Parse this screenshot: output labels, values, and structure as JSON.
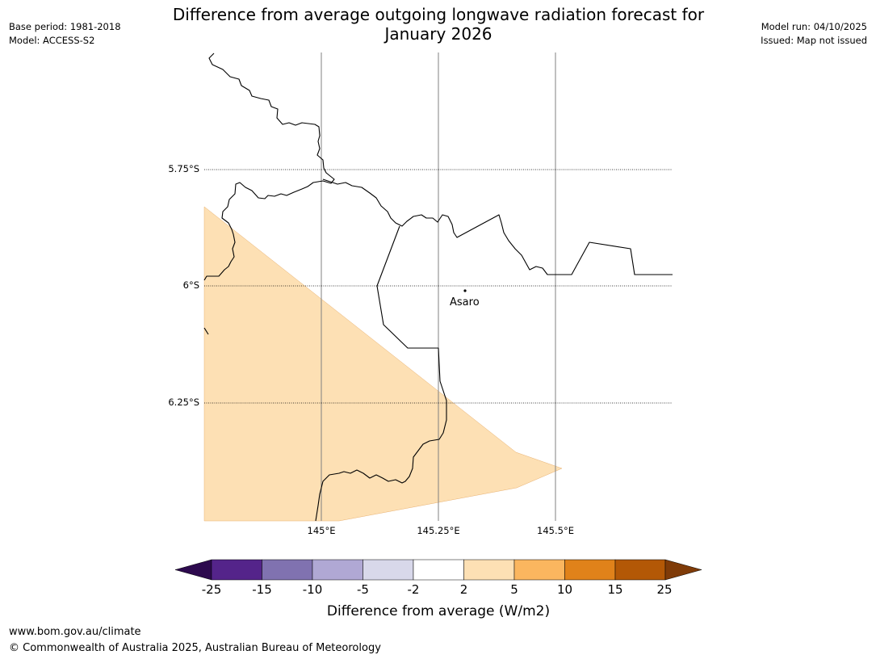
{
  "header": {
    "base_period": "Base period: 1981-2018",
    "model": "Model: ACCESS-S2",
    "model_run": "Model run: 04/10/2025",
    "issued": "Issued: Map not issued",
    "title_line1": "Difference from average outgoing longwave radiation forecast for",
    "title_line2": "January 2026"
  },
  "map": {
    "latitudes": [
      "5.75°S",
      "6°S",
      "6.25°S"
    ],
    "longitudes": [
      "145°E",
      "145.25°E",
      "145.5°E"
    ],
    "place_label": "Asaro"
  },
  "colorbar": {
    "ticks": [
      "-25",
      "-15",
      "-10",
      "-5",
      "-2",
      "2",
      "5",
      "10",
      "15",
      "25"
    ],
    "colors": [
      "#2d0a4e",
      "#54248a",
      "#8072b0",
      "#b0a8d4",
      "#d8d8ea",
      "#ffffff",
      "#fde0b4",
      "#fbb65f",
      "#e0821a",
      "#b35806",
      "#7f3b08"
    ],
    "label": "Difference from average (W/m2)"
  },
  "footer": {
    "url": "www.bom.gov.au/climate",
    "copyright": "© Commonwealth of Australia 2025, Australian Bureau of Meteorology"
  }
}
